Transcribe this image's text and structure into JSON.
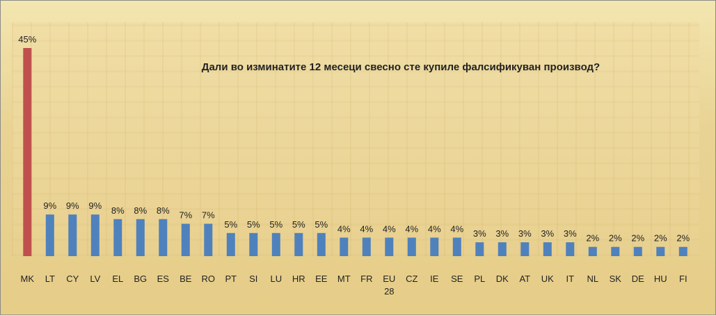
{
  "chart_data": {
    "type": "bar",
    "title": "Дали во изминатите 12 месеци свесно сте купиле  фалсификуван производ?",
    "categories": [
      "MK",
      "LT",
      "CY",
      "LV",
      "EL",
      "BG",
      "ES",
      "BE",
      "RO",
      "PT",
      "SI",
      "LU",
      "HR",
      "EE",
      "MT",
      "FR",
      "EU 28",
      "CZ",
      "IE",
      "SE",
      "PL",
      "DK",
      "AT",
      "UK",
      "IT",
      "NL",
      "SK",
      "DE",
      "HU",
      "FI"
    ],
    "values": [
      45,
      9,
      9,
      9,
      8,
      8,
      8,
      7,
      7,
      5,
      5,
      5,
      5,
      5,
      4,
      4,
      4,
      4,
      4,
      4,
      3,
      3,
      3,
      3,
      3,
      2,
      2,
      2,
      2,
      2
    ],
    "value_labels": [
      "45%",
      "9%",
      "9%",
      "9%",
      "8%",
      "8%",
      "8%",
      "7%",
      "7%",
      "5%",
      "5%",
      "5%",
      "5%",
      "5%",
      "4%",
      "4%",
      "4%",
      "4%",
      "4%",
      "4%",
      "3%",
      "3%",
      "3%",
      "3%",
      "3%",
      "2%",
      "2%",
      "2%",
      "2%",
      "2%"
    ],
    "highlight_category": "MK",
    "colors": {
      "highlight": "#c0504d",
      "default": "#4f81bd"
    },
    "xlabel": "",
    "ylabel": "",
    "ylim": [
      0,
      45
    ],
    "grid": false,
    "legend": "none"
  }
}
